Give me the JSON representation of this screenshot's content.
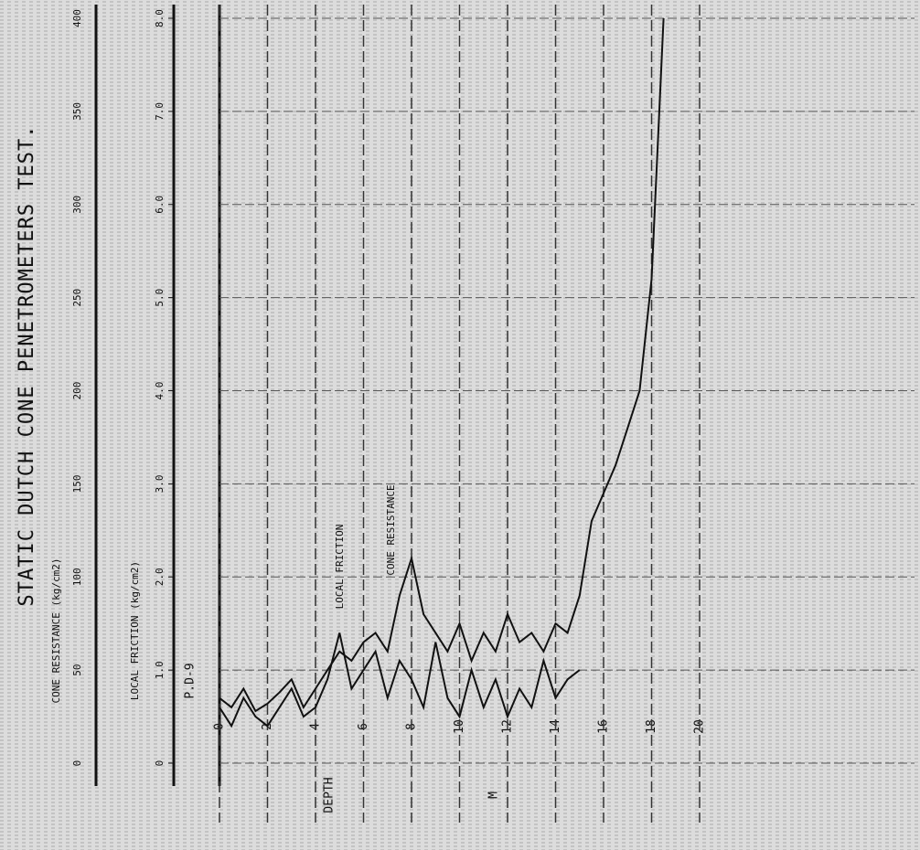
{
  "chart_data": {
    "type": "line",
    "title": "STATIC DUTCH CONE PENETROMETERS TEST.",
    "station": "P.D-9",
    "xlabel": "DEPTH",
    "xunit": "M",
    "ylabel": "CONE RESISTANCE (kg/cm2)",
    "y2label": "LOCAL FRICTION (kg/cm2)",
    "x": [
      0,
      0.5,
      1,
      1.5,
      2,
      2.5,
      3,
      3.5,
      4,
      4.5,
      5,
      5.5,
      6,
      6.5,
      7,
      7.5,
      8,
      8.5,
      9,
      9.5,
      10,
      10.5,
      11,
      11.5,
      12,
      12.5,
      13,
      13.5,
      14,
      14.5,
      15,
      15.5,
      16,
      16.5,
      17,
      17.5,
      18,
      18.5
    ],
    "xlim": [
      0,
      20
    ],
    "xticks": [
      0,
      2,
      4,
      6,
      8,
      10,
      12,
      14,
      16,
      18,
      20
    ],
    "ylim": [
      0,
      400
    ],
    "yticks": [
      0,
      50,
      100,
      150,
      200,
      250,
      300,
      350,
      400
    ],
    "y2lim": [
      0,
      8
    ],
    "y2ticks": [
      0,
      {
        "value": 1,
        "label": "1.0"
      },
      {
        "value": 2,
        "label": "2.0"
      },
      {
        "value": 3,
        "label": "3.0"
      },
      {
        "value": 4,
        "label": "4.0"
      },
      {
        "value": 5,
        "label": "5.0"
      },
      {
        "value": 6,
        "label": "6.0"
      },
      {
        "value": 7,
        "label": "7.0"
      },
      {
        "value": 8,
        "label": "8.0"
      }
    ],
    "grid": true,
    "series": [
      {
        "name": "CONE RESISTANCE",
        "color": "#111111",
        "values": [
          35,
          30,
          40,
          28,
          32,
          38,
          45,
          30,
          40,
          50,
          60,
          55,
          65,
          70,
          60,
          90,
          110,
          80,
          70,
          60,
          75,
          55,
          70,
          60,
          80,
          65,
          70,
          60,
          75,
          70,
          90,
          130,
          145,
          160,
          180,
          200,
          260,
          400
        ]
      },
      {
        "name": "LOCAL FRICTION",
        "color": "#111111",
        "axis": "y2",
        "values": [
          0.6,
          0.4,
          0.7,
          0.5,
          0.4,
          0.6,
          0.8,
          0.5,
          0.6,
          0.9,
          1.4,
          0.8,
          1.0,
          1.2,
          0.7,
          1.1,
          0.9,
          0.6,
          1.3,
          0.7,
          0.5,
          1.0,
          0.6,
          0.9,
          0.5,
          0.8,
          0.6,
          1.1,
          0.7,
          0.9,
          1.0,
          null,
          null,
          null,
          null,
          null,
          null,
          null
        ]
      }
    ]
  }
}
